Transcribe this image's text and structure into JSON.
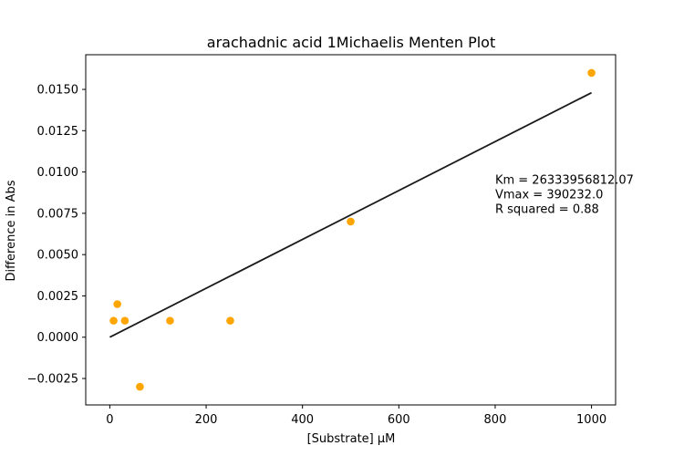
{
  "chart_data": {
    "type": "scatter",
    "title": "arachadnic acid 1Michaelis Menten Plot",
    "xlabel": "[Substrate] µM",
    "ylabel": "Difference in Abs",
    "xlim": [
      -50,
      1050
    ],
    "ylim": [
      -0.0041,
      0.0171
    ],
    "x_ticks": [
      0,
      200,
      400,
      600,
      800,
      1000
    ],
    "x_tick_labels": [
      "0",
      "200",
      "400",
      "600",
      "800",
      "1000"
    ],
    "y_ticks": [
      -0.0025,
      0.0,
      0.0025,
      0.005,
      0.0075,
      0.01,
      0.0125,
      0.015
    ],
    "y_tick_labels": [
      "−0.0025",
      "0.0000",
      "0.0025",
      "0.0050",
      "0.0075",
      "0.0100",
      "0.0125",
      "0.0150"
    ],
    "grid": false,
    "series": [
      {
        "kind": "scatter",
        "color": "#ffa500",
        "points": [
          {
            "x": 7.8,
            "y": 0.001
          },
          {
            "x": 15.6,
            "y": 0.002
          },
          {
            "x": 31.25,
            "y": 0.001
          },
          {
            "x": 62.5,
            "y": -0.003
          },
          {
            "x": 125,
            "y": 0.001
          },
          {
            "x": 250,
            "y": 0.001
          },
          {
            "x": 500,
            "y": 0.007
          },
          {
            "x": 1000,
            "y": 0.016
          }
        ]
      },
      {
        "kind": "line",
        "color": "#1a1a1a",
        "points": [
          {
            "x": 0,
            "y": 0.0
          },
          {
            "x": 1000,
            "y": 0.0148
          }
        ]
      }
    ],
    "annotation": {
      "lines": [
        "Km = 26333956812.07",
        "Vmax = 390232.0",
        "R squared = 0.88"
      ],
      "x": 800,
      "y": 0.0093
    }
  }
}
